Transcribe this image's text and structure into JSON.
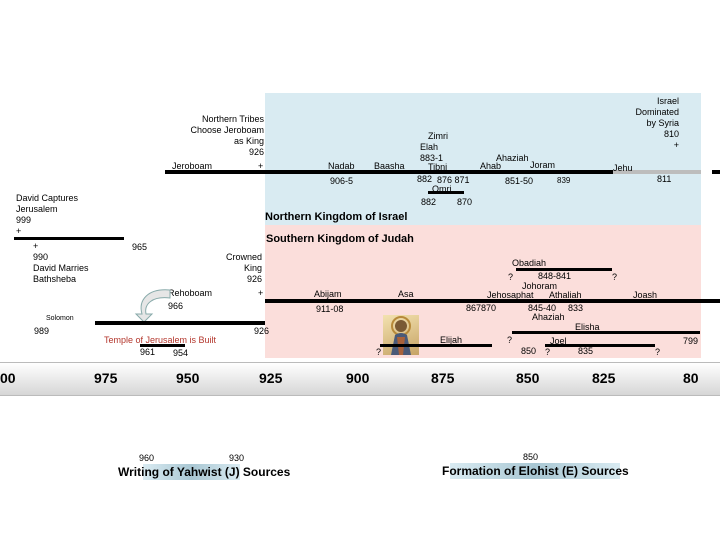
{
  "colors": {
    "north_region": "#d9ebf2",
    "south_region": "#fbdedb",
    "temple_text": "#b3362c"
  },
  "north_heading": "Northern Kingdom of Israel",
  "south_heading": "Southern Kingdom of Judah",
  "north": {
    "syria": [
      "Israel",
      "Dominated",
      "by Syria",
      "810",
      "+"
    ],
    "tribes": [
      "Northern Tribes",
      "Choose Jeroboam",
      "as King",
      "926"
    ],
    "jeroboam": "Jeroboam",
    "jeroboam_plus": "+",
    "nadab": "Nadab",
    "nadab_years": "906-5",
    "baasha": "Baasha",
    "zimri": "Zimri",
    "elah": "Elah",
    "elah_years": "883-1",
    "tibni": "Tibni",
    "years_882a": "882",
    "years_876": "876 871",
    "omri": "Omri",
    "years_882b": "882",
    "years_870": "870",
    "ahaziah": "Ahaziah",
    "ahab": "Ahab",
    "joram": "Joram",
    "years_851": "851-50",
    "years_839": "839",
    "jehu": "Jehu",
    "years_811": "811"
  },
  "south": {
    "david_captures": [
      "David Captures",
      "Jerusalem",
      "999",
      "+"
    ],
    "david_marries": [
      "+",
      "990",
      "David Marries",
      "Bathsheba"
    ],
    "years_965": "965",
    "crowned": [
      "Crowned",
      "King",
      "926"
    ],
    "crowned_plus": "+",
    "rehoboam": "Rehoboam",
    "rehoboam_years": "966",
    "solomon": "Solomon",
    "solomon_years": "989",
    "years_926": "926",
    "temple": "Temple of Jerusalem is Built",
    "years_961": "961",
    "years_954": "954",
    "abijam": "Abijam",
    "abijam_years": "911-08",
    "asa": "Asa",
    "q1": "?",
    "elijah": "Elijah",
    "obadiah": "Obadiah",
    "q2": "?",
    "years_848": "848-841",
    "q3": "?",
    "johoram": "Johoram",
    "jehosaphat": "Jehosaphat",
    "athaliah": "Athaliah",
    "joash": "Joash",
    "years_867": "867870",
    "years_845": "845-40",
    "years_833": "833",
    "ahaziah_s": "Ahaziah",
    "elisha": "Elisha",
    "q4": "?",
    "joel": "Joel",
    "years_799": "799",
    "years_850": "850",
    "q5": "?",
    "years_835": "835",
    "q6": "?"
  },
  "axis": [
    "00",
    "975",
    "950",
    "925",
    "900",
    "875",
    "850",
    "825",
    "80"
  ],
  "sources": {
    "j_start": "960",
    "j_end": "930",
    "j_label": "Writing of Yahwist (J) Sources",
    "e_date": "850",
    "e_label": "Formation of Elohist (E) Sources"
  }
}
